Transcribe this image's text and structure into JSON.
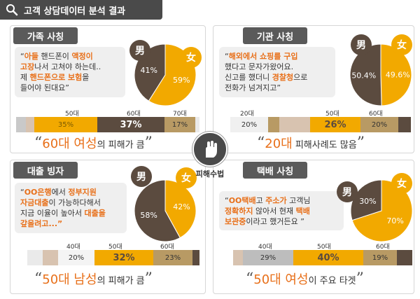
{
  "header": {
    "title": "고객 상담데이터 분석 결과",
    "icon": "magnifier-icon"
  },
  "center": {
    "label": "피해수법",
    "icon": "hand-icon"
  },
  "colors": {
    "male": "#5b4b3f",
    "female": "#f2a900",
    "accent": "#e8701a"
  },
  "panels": [
    {
      "tag": "가족 사칭",
      "quote_lines": [
        [
          {
            "t": "“",
            "h": false
          },
          {
            "t": "아들",
            "h": true
          },
          {
            "t": " 핸드폰이 ",
            "h": false
          },
          {
            "t": "액정이",
            "h": true
          }
        ],
        [
          {
            "t": "고장",
            "h": true
          },
          {
            "t": "나서 고쳐야 하는데..",
            "h": false
          }
        ],
        [
          {
            "t": "제 ",
            "h": false
          },
          {
            "t": "핸드폰으로 보험",
            "h": true
          },
          {
            "t": "을",
            "h": false
          }
        ],
        [
          {
            "t": "들어야 된대요”",
            "h": false
          }
        ]
      ],
      "male": "男",
      "female": "女",
      "male_pct": "41%",
      "female_pct": "59%",
      "bar_ticks": [
        "50대",
        "60대",
        "70대"
      ],
      "bar_labels": [
        "35%",
        "37%",
        "17%"
      ],
      "caption_pre": "60대 여성",
      "caption_post": "의 피해가 큼"
    },
    {
      "tag": "기관 사칭",
      "quote_lines": [
        [
          {
            "t": "“",
            "h": false
          },
          {
            "t": "해외에서 쇼핑를 구입",
            "h": true
          }
        ],
        [
          {
            "t": "했다고 문자가왔어요.",
            "h": false
          }
        ],
        [
          {
            "t": "신고를 했더니 ",
            "h": false
          },
          {
            "t": "경찰청",
            "h": true
          },
          {
            "t": "으로",
            "h": false
          }
        ],
        [
          {
            "t": "전화가 넘겨지고”",
            "h": false
          }
        ]
      ],
      "male": "男",
      "female": "女",
      "male_pct": "50.4%",
      "female_pct": "49.6%",
      "bar_ticks": [
        "20대",
        "50대",
        "60대"
      ],
      "bar_labels": [
        "20%",
        "26%",
        "20%"
      ],
      "caption_pre": "20대",
      "caption_post": " 피해사례도 많음"
    },
    {
      "tag": "대출 빙자",
      "quote_lines": [
        [
          {
            "t": "“",
            "h": false
          },
          {
            "t": "OO은행",
            "h": true
          },
          {
            "t": "에서 ",
            "h": false
          },
          {
            "t": "정부지원",
            "h": true
          }
        ],
        [
          {
            "t": "자금대출",
            "h": true
          },
          {
            "t": "이 가능하다해서",
            "h": false
          }
        ],
        [
          {
            "t": "지금 이율이 높아서 ",
            "h": false
          },
          {
            "t": "대출을",
            "h": true
          }
        ],
        [
          {
            "t": "갚을려고...”",
            "h": true
          }
        ]
      ],
      "male": "男",
      "female": "女",
      "male_pct": "58%",
      "female_pct": "42%",
      "bar_ticks": [
        "40대",
        "50대",
        "60대"
      ],
      "bar_labels": [
        "20%",
        "32%",
        "23%"
      ],
      "caption_pre": "50대 남성",
      "caption_post": "의 피해가 큼"
    },
    {
      "tag": "택배 사칭",
      "quote_lines": [
        [
          {
            "t": "“",
            "h": false
          },
          {
            "t": "OO택배",
            "h": true
          },
          {
            "t": "고 ",
            "h": false
          },
          {
            "t": "주소가",
            "h": true
          },
          {
            "t": " 고객님",
            "h": false
          }
        ],
        [
          {
            "t": "정확하지",
            "h": true
          },
          {
            "t": " 않아서 현재 ",
            "h": false
          },
          {
            "t": "택배",
            "h": true
          }
        ],
        [
          {
            "t": "보관중",
            "h": true
          },
          {
            "t": "이라고 했거든요 ”",
            "h": false
          }
        ]
      ],
      "male": "男",
      "female": "女",
      "male_pct": "30%",
      "female_pct": "70%",
      "bar_ticks": [
        "40대",
        "50대",
        "60대"
      ],
      "bar_labels": [
        "29%",
        "40%",
        "19%"
      ],
      "caption_pre": "50대 여성",
      "caption_post": "이 주요 타겟"
    }
  ],
  "chart_data": [
    {
      "type": "pie",
      "title": "",
      "series": [
        {
          "name": "男",
          "value": 41
        },
        {
          "name": "女",
          "value": 59
        }
      ]
    },
    {
      "type": "pie",
      "title": "",
      "series": [
        {
          "name": "男",
          "value": 50.4
        },
        {
          "name": "女",
          "value": 49.6
        }
      ]
    },
    {
      "type": "pie",
      "title": "",
      "series": [
        {
          "name": "男",
          "value": 58
        },
        {
          "name": "女",
          "value": 42
        }
      ]
    },
    {
      "type": "pie",
      "title": "",
      "series": [
        {
          "name": "男",
          "value": 30
        },
        {
          "name": "女",
          "value": 70
        }
      ]
    }
  ]
}
